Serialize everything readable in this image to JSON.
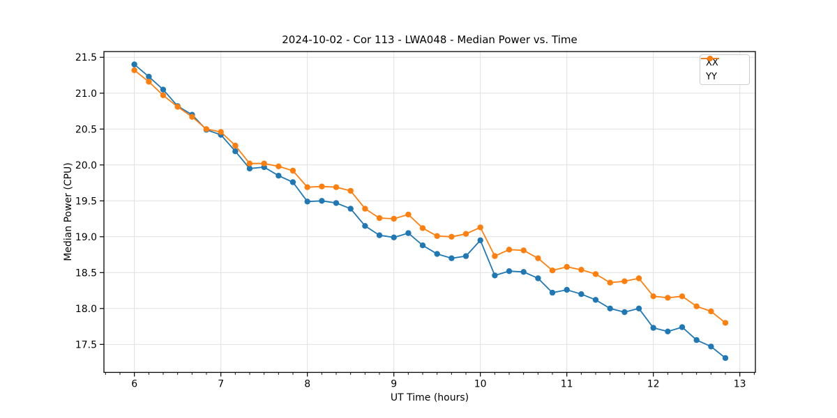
{
  "chart_data": {
    "type": "line",
    "title": "2024-10-02 - Cor 113 - LWA048 - Median Power vs. Time",
    "xlabel": "UT Time (hours)",
    "ylabel": "Median Power (CPU)",
    "xlim": [
      5.648,
      13.18
    ],
    "ylim": [
      17.11,
      21.58
    ],
    "xticks": [
      6,
      7,
      8,
      9,
      10,
      11,
      12,
      13
    ],
    "yticks": [
      17.5,
      18.0,
      18.5,
      19.0,
      19.5,
      20.0,
      20.5,
      21.0,
      21.5
    ],
    "x_minor_tick_step_hours": 0.1667,
    "grid": true,
    "legend_position": "upper right",
    "x": [
      6.0,
      6.167,
      6.333,
      6.5,
      6.667,
      6.833,
      7.0,
      7.167,
      7.333,
      7.5,
      7.667,
      7.833,
      8.0,
      8.167,
      8.333,
      8.5,
      8.667,
      8.833,
      9.0,
      9.167,
      9.333,
      9.5,
      9.667,
      9.833,
      10.0,
      10.167,
      10.333,
      10.5,
      10.667,
      10.833,
      11.0,
      11.167,
      11.333,
      11.5,
      11.667,
      11.833,
      12.0,
      12.167,
      12.333,
      12.5,
      12.667,
      12.833
    ],
    "series": [
      {
        "name": "XX",
        "color": "#1f77b4",
        "values": [
          21.4,
          21.23,
          21.05,
          20.82,
          20.7,
          20.49,
          20.42,
          20.19,
          19.95,
          19.97,
          19.85,
          19.76,
          19.49,
          19.5,
          19.47,
          19.39,
          19.15,
          19.02,
          18.99,
          19.05,
          18.88,
          18.76,
          18.7,
          18.73,
          18.95,
          18.46,
          18.52,
          18.51,
          18.42,
          18.22,
          18.26,
          18.2,
          18.12,
          18.0,
          17.95,
          18.0,
          17.73,
          17.68,
          17.74,
          17.56,
          17.47,
          17.31
        ]
      },
      {
        "name": "YY",
        "color": "#ff7f0e",
        "values": [
          21.32,
          21.16,
          20.97,
          20.81,
          20.67,
          20.5,
          20.46,
          20.27,
          20.02,
          20.02,
          19.98,
          19.92,
          19.69,
          19.7,
          19.69,
          19.64,
          19.39,
          19.26,
          19.25,
          19.31,
          19.12,
          19.01,
          19.0,
          19.04,
          19.13,
          18.73,
          18.82,
          18.81,
          18.7,
          18.53,
          18.58,
          18.54,
          18.48,
          18.36,
          18.38,
          18.42,
          18.17,
          18.15,
          18.17,
          18.03,
          17.96,
          17.8
        ]
      }
    ]
  }
}
